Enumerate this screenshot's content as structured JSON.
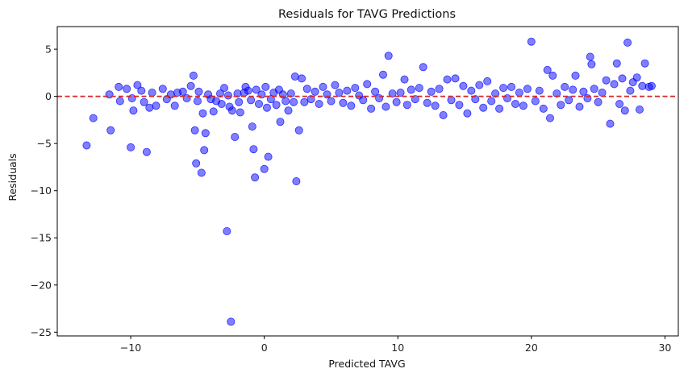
{
  "chart_data": {
    "type": "scatter",
    "title": "Residuals for TAVG Predictions",
    "xlabel": "Predicted TAVG",
    "ylabel": "Residuals",
    "xlim": [
      -15.5,
      31.0
    ],
    "ylim": [
      -25.4,
      7.4
    ],
    "xticks": [
      -10,
      0,
      10,
      20,
      30
    ],
    "yticks": [
      -25,
      -20,
      -15,
      -10,
      -5,
      0,
      5
    ],
    "grid": false,
    "legend": "none",
    "point_color": "#0000ff",
    "point_alpha": 0.5,
    "reference_line": {
      "y": 0,
      "color": "#d62728",
      "style": "dashed"
    },
    "series": [
      {
        "points": [
          [
            -13.3,
            -5.2
          ],
          [
            -12.8,
            -2.3
          ],
          [
            -11.6,
            0.2
          ],
          [
            -11.5,
            -3.6
          ],
          [
            -10.8,
            -0.5
          ],
          [
            -10.9,
            1.0
          ],
          [
            -10.3,
            0.8
          ],
          [
            -10.0,
            -5.4
          ],
          [
            -9.9,
            -0.2
          ],
          [
            -9.8,
            -1.5
          ],
          [
            -9.5,
            1.2
          ],
          [
            -9.2,
            0.6
          ],
          [
            -9.0,
            -0.6
          ],
          [
            -8.8,
            -5.9
          ],
          [
            -8.6,
            -1.2
          ],
          [
            -8.4,
            0.4
          ],
          [
            -8.1,
            -1.0
          ],
          [
            -7.6,
            0.8
          ],
          [
            -7.3,
            -0.3
          ],
          [
            -7.0,
            0.2
          ],
          [
            -6.7,
            -1.0
          ],
          [
            -6.5,
            0.4
          ],
          [
            -6.1,
            0.5
          ],
          [
            -5.8,
            -0.2
          ],
          [
            -5.5,
            1.1
          ],
          [
            -5.3,
            2.2
          ],
          [
            -5.2,
            -3.6
          ],
          [
            -5.1,
            -7.1
          ],
          [
            -5.0,
            -0.5
          ],
          [
            -4.9,
            0.5
          ],
          [
            -4.7,
            -8.1
          ],
          [
            -4.6,
            -1.8
          ],
          [
            -4.5,
            -5.7
          ],
          [
            -4.4,
            -3.9
          ],
          [
            -4.2,
            0.2
          ],
          [
            -4.0,
            -0.3
          ],
          [
            -3.8,
            -1.6
          ],
          [
            -3.6,
            -0.5
          ],
          [
            -3.3,
            0.3
          ],
          [
            -3.2,
            -0.8
          ],
          [
            -3.0,
            0.9
          ],
          [
            -2.8,
            -14.3
          ],
          [
            -2.7,
            0.1
          ],
          [
            -2.6,
            -1.1
          ],
          [
            -2.5,
            -23.9
          ],
          [
            -2.4,
            -1.5
          ],
          [
            -2.2,
            -4.3
          ],
          [
            -2.0,
            0.3
          ],
          [
            -1.9,
            -0.6
          ],
          [
            -1.8,
            -1.7
          ],
          [
            -1.5,
            0.4
          ],
          [
            -1.4,
            1.0
          ],
          [
            -1.2,
            0.6
          ],
          [
            -1.0,
            -0.4
          ],
          [
            -0.9,
            -3.2
          ],
          [
            -0.8,
            -5.6
          ],
          [
            -0.7,
            -8.6
          ],
          [
            -0.6,
            0.7
          ],
          [
            -0.4,
            -0.8
          ],
          [
            -0.2,
            0.2
          ],
          [
            0.0,
            -7.7
          ],
          [
            0.1,
            1.0
          ],
          [
            0.2,
            -1.2
          ],
          [
            0.3,
            -6.4
          ],
          [
            0.5,
            -0.3
          ],
          [
            0.7,
            0.4
          ],
          [
            0.9,
            -0.9
          ],
          [
            1.1,
            0.7
          ],
          [
            1.2,
            -2.7
          ],
          [
            1.4,
            0.2
          ],
          [
            1.6,
            -0.5
          ],
          [
            1.8,
            -1.5
          ],
          [
            2.0,
            0.3
          ],
          [
            2.2,
            -0.6
          ],
          [
            2.3,
            2.1
          ],
          [
            2.4,
            -9.0
          ],
          [
            2.6,
            -3.6
          ],
          [
            2.8,
            1.9
          ],
          [
            3.0,
            -0.6
          ],
          [
            3.2,
            0.8
          ],
          [
            3.5,
            -0.3
          ],
          [
            3.8,
            0.5
          ],
          [
            4.1,
            -0.8
          ],
          [
            4.4,
            1.0
          ],
          [
            4.7,
            0.2
          ],
          [
            5.0,
            -0.5
          ],
          [
            5.3,
            1.2
          ],
          [
            5.6,
            0.4
          ],
          [
            5.9,
            -0.7
          ],
          [
            6.2,
            0.6
          ],
          [
            6.5,
            -1.0
          ],
          [
            6.8,
            0.9
          ],
          [
            7.1,
            0.1
          ],
          [
            7.4,
            -0.4
          ],
          [
            7.7,
            1.3
          ],
          [
            8.0,
            -1.3
          ],
          [
            8.3,
            0.5
          ],
          [
            8.6,
            -0.2
          ],
          [
            8.9,
            2.3
          ],
          [
            9.1,
            -1.1
          ],
          [
            9.3,
            4.3
          ],
          [
            9.6,
            0.3
          ],
          [
            9.9,
            -0.6
          ],
          [
            10.2,
            0.4
          ],
          [
            10.5,
            1.8
          ],
          [
            10.7,
            -0.9
          ],
          [
            11.0,
            0.7
          ],
          [
            11.3,
            -0.3
          ],
          [
            11.6,
            0.9
          ],
          [
            11.9,
            3.1
          ],
          [
            12.2,
            -0.7
          ],
          [
            12.5,
            0.5
          ],
          [
            12.8,
            -1.0
          ],
          [
            13.1,
            0.8
          ],
          [
            13.4,
            -2.0
          ],
          [
            13.7,
            1.8
          ],
          [
            14.0,
            -0.4
          ],
          [
            14.3,
            1.9
          ],
          [
            14.6,
            -0.9
          ],
          [
            14.9,
            1.1
          ],
          [
            15.2,
            -1.8
          ],
          [
            15.5,
            0.6
          ],
          [
            15.8,
            -0.3
          ],
          [
            16.1,
            1.2
          ],
          [
            16.4,
            -1.2
          ],
          [
            16.7,
            1.6
          ],
          [
            17.0,
            -0.5
          ],
          [
            17.3,
            0.3
          ],
          [
            17.6,
            -1.3
          ],
          [
            17.9,
            0.9
          ],
          [
            18.2,
            -0.2
          ],
          [
            18.5,
            1.0
          ],
          [
            18.8,
            -0.8
          ],
          [
            19.1,
            0.4
          ],
          [
            19.4,
            -1.0
          ],
          [
            19.7,
            0.8
          ],
          [
            20.0,
            5.8
          ],
          [
            20.3,
            -0.5
          ],
          [
            20.6,
            0.6
          ],
          [
            20.9,
            -1.3
          ],
          [
            21.2,
            2.8
          ],
          [
            21.4,
            -2.3
          ],
          [
            21.6,
            2.2
          ],
          [
            21.9,
            0.3
          ],
          [
            22.2,
            -0.9
          ],
          [
            22.5,
            1.0
          ],
          [
            22.8,
            -0.4
          ],
          [
            23.1,
            0.7
          ],
          [
            23.3,
            2.2
          ],
          [
            23.6,
            -1.1
          ],
          [
            23.9,
            0.5
          ],
          [
            24.2,
            -0.2
          ],
          [
            24.4,
            4.2
          ],
          [
            24.5,
            3.4
          ],
          [
            24.7,
            0.8
          ],
          [
            25.0,
            -0.6
          ],
          [
            25.3,
            0.4
          ],
          [
            25.6,
            1.7
          ],
          [
            25.9,
            -2.9
          ],
          [
            26.2,
            1.3
          ],
          [
            26.4,
            3.5
          ],
          [
            26.6,
            -0.8
          ],
          [
            26.8,
            1.9
          ],
          [
            27.0,
            -1.5
          ],
          [
            27.2,
            5.7
          ],
          [
            27.4,
            0.6
          ],
          [
            27.6,
            1.5
          ],
          [
            27.9,
            2.0
          ],
          [
            28.1,
            -1.4
          ],
          [
            28.3,
            1.1
          ],
          [
            28.5,
            3.5
          ],
          [
            28.8,
            1.0
          ],
          [
            29.0,
            1.1
          ]
        ]
      }
    ]
  }
}
